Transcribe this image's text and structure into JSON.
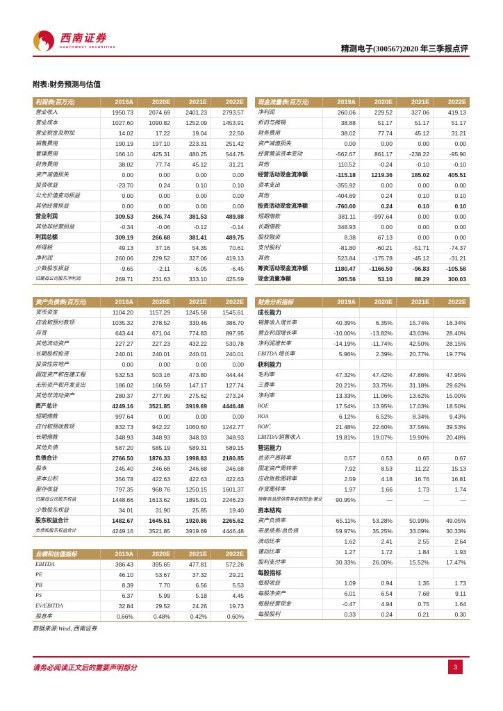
{
  "header": {
    "logo_title": "西南证券",
    "logo_subtitle": "SOUTHWEST SECURITIES",
    "report_title": "精测电子(300567)2020 年三季报点评"
  },
  "appendix_title": "附表:财务预测与估值",
  "years": [
    "2019A",
    "2020E",
    "2021E",
    "2022E"
  ],
  "colors": {
    "accent_gold": "#BA9456",
    "accent_red": "#C8102E",
    "header_rule_red": "#9E1B1E",
    "row_border_gray": "#E4E4E4"
  },
  "tables": {
    "left": [
      {
        "title": "利润表(百万元)",
        "rows": [
          {
            "label": "营业收入",
            "values": [
              "1950.73",
              "2074.69",
              "2401.23",
              "2793.57"
            ]
          },
          {
            "label": "营业成本",
            "values": [
              "1027.60",
              "1090.82",
              "1252.09",
              "1453.91"
            ]
          },
          {
            "label": "营业税金及附加",
            "values": [
              "14.02",
              "17.22",
              "19.04",
              "22.50"
            ]
          },
          {
            "label": "销售费用",
            "values": [
              "190.19",
              "197.10",
              "223.31",
              "251.42"
            ]
          },
          {
            "label": "管理费用",
            "values": [
              "166.10",
              "425.31",
              "480.25",
              "544.75"
            ]
          },
          {
            "label": "财务费用",
            "values": [
              "38.02",
              "77.74",
              "45.12",
              "31.21"
            ]
          },
          {
            "label": "资产减值损失",
            "values": [
              "0.00",
              "0.00",
              "0.00",
              "0.00"
            ]
          },
          {
            "label": "投资收益",
            "values": [
              "-23.70",
              "0.24",
              "0.10",
              "0.10"
            ]
          },
          {
            "label": "公允价值变动损益",
            "values": [
              "0.00",
              "0.00",
              "0.00",
              "0.00"
            ]
          },
          {
            "label": "其他经营损益",
            "values": [
              "0.00",
              "0.00",
              "0.00",
              "0.00"
            ]
          },
          {
            "label": "营业利润",
            "bold": true,
            "values": [
              "309.53",
              "266.74",
              "381.53",
              "489.88"
            ]
          },
          {
            "label": "其他非经营损益",
            "values": [
              "-0.34",
              "-0.06",
              "-0.12",
              "-0.14"
            ]
          },
          {
            "label": "利润总额",
            "bold": true,
            "values": [
              "309.19",
              "266.68",
              "381.41",
              "489.75"
            ]
          },
          {
            "label": "所得税",
            "values": [
              "49.13",
              "37.16",
              "54.35",
              "70.61"
            ]
          },
          {
            "label": "净利润",
            "values": [
              "260.06",
              "229.52",
              "327.06",
              "419.13"
            ]
          },
          {
            "label": "少数股东损益",
            "values": [
              "-9.65",
              "-2.11",
              "-6.05",
              "-6.45"
            ]
          },
          {
            "label": "归属母公司股东净利润",
            "small": true,
            "values": [
              "269.71",
              "231.63",
              "333.10",
              "425.59"
            ]
          }
        ]
      },
      {
        "title": "资产负债表(百万元)",
        "rows": [
          {
            "label": "货币资金",
            "values": [
              "1104.20",
              "1157.29",
              "1245.58",
              "1545.61"
            ]
          },
          {
            "label": "应收和预付款项",
            "values": [
              "1035.32",
              "278.52",
              "330.46",
              "386.70"
            ]
          },
          {
            "label": "存货",
            "values": [
              "643.44",
              "671.04",
              "774.83",
              "897.95"
            ]
          },
          {
            "label": "其他流动资产",
            "values": [
              "227.27",
              "227.23",
              "432.22",
              "530.78"
            ]
          },
          {
            "label": "长期股权投资",
            "values": [
              "240.01",
              "240.01",
              "240.01",
              "240.01"
            ]
          },
          {
            "label": "投资性房地产",
            "values": [
              "0.00",
              "0.00",
              "0.00",
              "0.00"
            ]
          },
          {
            "label": "固定资产和在建工程",
            "values": [
              "532.53",
              "503.16",
              "473.80",
              "444.44"
            ]
          },
          {
            "label": "无形资产和开发支出",
            "values": [
              "186.02",
              "166.59",
              "147.17",
              "127.74"
            ]
          },
          {
            "label": "其他非流动资产",
            "values": [
              "280.37",
              "277.99",
              "275.62",
              "273.24"
            ]
          },
          {
            "label": "资产总计",
            "bold": true,
            "values": [
              "4249.16",
              "3521.85",
              "3919.69",
              "4446.48"
            ]
          },
          {
            "label": "短期借款",
            "values": [
              "997.64",
              "0.00",
              "0.00",
              "0.00"
            ]
          },
          {
            "label": "应付和预收款项",
            "values": [
              "832.73",
              "942.22",
              "1060.60",
              "1242.77"
            ]
          },
          {
            "label": "长期借款",
            "values": [
              "348.93",
              "348.93",
              "348.93",
              "348.93"
            ]
          },
          {
            "label": "其他负债",
            "values": [
              "587.20",
              "585.19",
              "589.31",
              "589.15"
            ]
          },
          {
            "label": "负债合计",
            "bold": true,
            "values": [
              "2766.50",
              "1876.33",
              "1998.83",
              "2180.85"
            ]
          },
          {
            "label": "股本",
            "values": [
              "245.40",
              "246.68",
              "246.68",
              "246.68"
            ]
          },
          {
            "label": "资本公积",
            "values": [
              "356.78",
              "422.63",
              "422.63",
              "422.63"
            ]
          },
          {
            "label": "留存收益",
            "values": [
              "797.35",
              "968.76",
              "1250.15",
              "1601.37"
            ]
          },
          {
            "label": "归属母公司股东权益",
            "small": true,
            "values": [
              "1448.66",
              "1613.62",
              "1895.01",
              "2246.23"
            ]
          },
          {
            "label": "少数股东权益",
            "values": [
              "34.01",
              "31.90",
              "25.85",
              "19.40"
            ]
          },
          {
            "label": "股东权益合计",
            "bold": true,
            "values": [
              "1482.67",
              "1645.51",
              "1920.86",
              "2265.62"
            ]
          },
          {
            "label": "负债和股东权益合计",
            "small": true,
            "values": [
              "4249.16",
              "3521.85",
              "3919.69",
              "4446.48"
            ]
          }
        ]
      },
      {
        "title": "业绩和估值指标",
        "rows": [
          {
            "label": "EBITDA",
            "values": [
              "386.43",
              "395.65",
              "477.81",
              "572.26"
            ]
          },
          {
            "label": "PE",
            "values": [
              "46.10",
              "53.67",
              "37.32",
              "29.21"
            ]
          },
          {
            "label": "PB",
            "values": [
              "8.39",
              "7.70",
              "6.56",
              "5.53"
            ]
          },
          {
            "label": "PS",
            "values": [
              "6.37",
              "5.99",
              "5.18",
              "4.45"
            ]
          },
          {
            "label": "EV/EBITDA",
            "values": [
              "32.84",
              "29.52",
              "24.26",
              "19.73"
            ]
          },
          {
            "label": "股息率",
            "values": [
              "0.66%",
              "0.48%",
              "0.42%",
              "0.60%"
            ]
          }
        ]
      }
    ],
    "right": [
      {
        "title": "现金流量表(百万元)",
        "rows": [
          {
            "label": "净利润",
            "values": [
              "260.06",
              "229.52",
              "327.06",
              "419.13"
            ]
          },
          {
            "label": "折旧与摊销",
            "values": [
              "38.88",
              "51.17",
              "51.17",
              "51.17"
            ]
          },
          {
            "label": "财务费用",
            "values": [
              "38.02",
              "77.74",
              "45.12",
              "31.21"
            ]
          },
          {
            "label": "资产减值损失",
            "values": [
              "0.00",
              "0.00",
              "0.00",
              "0.00"
            ]
          },
          {
            "label": "经营营运资本变动",
            "values": [
              "-562.67",
              "861.17",
              "-238.22",
              "-95.90"
            ]
          },
          {
            "label": "其他",
            "values": [
              "110.52",
              "-0.24",
              "-0.10",
              "-0.10"
            ]
          },
          {
            "label": "经营活动现金流净额",
            "bold": true,
            "values": [
              "-115.18",
              "1219.36",
              "185.02",
              "405.51"
            ]
          },
          {
            "label": "资本支出",
            "values": [
              "-355.92",
              "0.00",
              "0.00",
              "0.00"
            ]
          },
          {
            "label": "其他",
            "values": [
              "-404.69",
              "0.24",
              "0.10",
              "0.10"
            ]
          },
          {
            "label": "投资活动现金流净额",
            "bold": true,
            "values": [
              "-760.60",
              "0.24",
              "0.10",
              "0.10"
            ]
          },
          {
            "label": "短期借款",
            "values": [
              "381.11",
              "-997.64",
              "0.00",
              "0.00"
            ]
          },
          {
            "label": "长期借款",
            "values": [
              "348.93",
              "0.00",
              "0.00",
              "0.00"
            ]
          },
          {
            "label": "股权融资",
            "values": [
              "8.38",
              "67.13",
              "0.00",
              "0.00"
            ]
          },
          {
            "label": "支付股利",
            "values": [
              "-81.80",
              "-60.21",
              "-51.71",
              "-74.37"
            ]
          },
          {
            "label": "其他",
            "values": [
              "523.84",
              "-175.78",
              "-45.12",
              "-31.21"
            ]
          },
          {
            "label": "筹资活动现金流净额",
            "bold": true,
            "values": [
              "1180.47",
              "-1166.50",
              "-96.83",
              "-105.58"
            ]
          },
          {
            "label": "现金流量净额",
            "bold": true,
            "values": [
              "305.56",
              "53.10",
              "88.29",
              "300.03"
            ]
          }
        ]
      },
      {
        "title": "财务分析指标",
        "rows": [
          {
            "label": "成长能力",
            "section": true,
            "values": [
              "",
              "",
              "",
              ""
            ]
          },
          {
            "label": "销售收入增长率",
            "values": [
              "40.39%",
              "6.35%",
              "15.74%",
              "16.34%"
            ]
          },
          {
            "label": "营业利润增长率",
            "values": [
              "-10.00%",
              "-13.82%",
              "43.03%",
              "28.40%"
            ]
          },
          {
            "label": "净利润增长率",
            "values": [
              "-14.19%",
              "-11.74%",
              "42.50%",
              "28.15%"
            ]
          },
          {
            "label": "EBITDA 增长率",
            "values": [
              "5.96%",
              "2.39%",
              "20.77%",
              "19.77%"
            ]
          },
          {
            "label": "获利能力",
            "section": true,
            "values": [
              "",
              "",
              "",
              ""
            ]
          },
          {
            "label": "毛利率",
            "values": [
              "47.32%",
              "47.42%",
              "47.86%",
              "47.95%"
            ]
          },
          {
            "label": "三费率",
            "values": [
              "20.21%",
              "33.75%",
              "31.18%",
              "29.62%"
            ]
          },
          {
            "label": "净利率",
            "values": [
              "13.33%",
              "11.06%",
              "13.62%",
              "15.00%"
            ]
          },
          {
            "label": "ROE",
            "values": [
              "17.54%",
              "13.95%",
              "17.03%",
              "18.50%"
            ]
          },
          {
            "label": "ROA",
            "values": [
              "6.12%",
              "6.52%",
              "8.34%",
              "9.43%"
            ]
          },
          {
            "label": "ROIC",
            "values": [
              "21.48%",
              "22.60%",
              "37.56%",
              "39.53%"
            ]
          },
          {
            "label": "EBITDA/销售收入",
            "values": [
              "19.81%",
              "19.07%",
              "19.90%",
              "20.48%"
            ]
          },
          {
            "label": "营运能力",
            "section": true,
            "values": [
              "",
              "",
              "",
              ""
            ]
          },
          {
            "label": "总资产周转率",
            "values": [
              "0.57",
              "0.53",
              "0.65",
              "0.67"
            ]
          },
          {
            "label": "固定资产周转率",
            "values": [
              "7.92",
              "8.53",
              "11.22",
              "15.13"
            ]
          },
          {
            "label": "应收账款周转率",
            "values": [
              "2.59",
              "4.18",
              "16.76",
              "16.81"
            ]
          },
          {
            "label": "存货周转率",
            "values": [
              "1.97",
              "1.66",
              "1.73",
              "1.74"
            ]
          },
          {
            "label": "销售商品提供劳务收到现金/营业收入",
            "small": true,
            "values": [
              "90.95%",
              "—",
              "—",
              "—"
            ]
          },
          {
            "label": "资本结构",
            "section": true,
            "values": [
              "",
              "",
              "",
              ""
            ]
          },
          {
            "label": "资产负债率",
            "values": [
              "65.11%",
              "53.28%",
              "50.99%",
              "49.05%"
            ]
          },
          {
            "label": "带息债务/总负债",
            "values": [
              "59.97%",
              "35.25%",
              "33.09%",
              "30.33%"
            ]
          },
          {
            "label": "流动比率",
            "values": [
              "1.62",
              "2.41",
              "2.55",
              "2.64"
            ]
          },
          {
            "label": "速动比率",
            "values": [
              "1.27",
              "1.72",
              "1.84",
              "1.93"
            ]
          },
          {
            "label": "股利支付率",
            "values": [
              "30.33%",
              "26.00%",
              "15.52%",
              "17.47%"
            ]
          },
          {
            "label": "每股指标",
            "section": true,
            "values": [
              "",
              "",
              "",
              ""
            ]
          },
          {
            "label": "每股收益",
            "values": [
              "1.09",
              "0.94",
              "1.35",
              "1.73"
            ]
          },
          {
            "label": "每股净资产",
            "values": [
              "6.01",
              "6.54",
              "7.68",
              "9.11"
            ]
          },
          {
            "label": "每股经营现金",
            "values": [
              "-0.47",
              "4.94",
              "0.75",
              "1.64"
            ]
          },
          {
            "label": "每股股利",
            "values": [
              "0.33",
              "0.24",
              "0.21",
              "0.30"
            ]
          }
        ]
      }
    ]
  },
  "source_note": "数据来源:Wind, 西南证券",
  "footer": {
    "disclaimer": "请务必阅读正文后的重要声明部分",
    "page_number": "3"
  }
}
